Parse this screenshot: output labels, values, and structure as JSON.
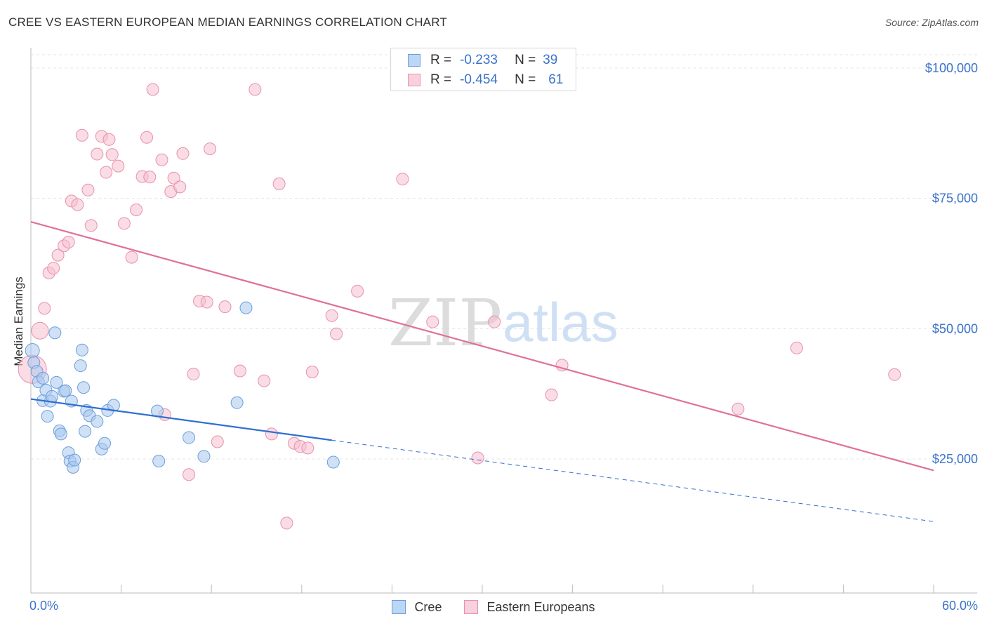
{
  "title": "CREE VS EASTERN EUROPEAN MEDIAN EARNINGS CORRELATION CHART",
  "source": "Source: ZipAtlas.com",
  "watermark": {
    "zip": "ZIP",
    "atlas": "atlas"
  },
  "legend": {
    "r_label": "R =",
    "n_label": "N =",
    "cree": {
      "r": "-0.233",
      "n": "39"
    },
    "eastern": {
      "r": "-0.454",
      "n": "61"
    }
  },
  "colors": {
    "cree_fill": "#a9c8ef",
    "cree_stroke": "#6b9fdc",
    "cree_line": "#2f6fd0",
    "eastern_fill": "#f6bfd0",
    "eastern_stroke": "#e890ad",
    "eastern_line": "#e0709a",
    "axis_text": "#3a73c9"
  },
  "chart_data": {
    "type": "scatter",
    "title": "CREE VS EASTERN EUROPEAN MEDIAN EARNINGS CORRELATION CHART",
    "xlabel": "",
    "ylabel": "Median Earnings",
    "xlim": [
      0,
      60
    ],
    "ylim": [
      0,
      105000
    ],
    "x_tick_labels": [
      "0.0%",
      "60.0%"
    ],
    "y_ticks": [
      25000,
      50000,
      75000,
      100000
    ],
    "y_tick_labels": [
      "$25,000",
      "$50,000",
      "$75,000",
      "$100,000"
    ],
    "grid": true,
    "legend_position": "top-center",
    "series": [
      {
        "name": "Cree",
        "r": -0.233,
        "n": 39,
        "trend": {
          "x0": 0,
          "y0": 36500,
          "x1": 20,
          "y1": 28600,
          "x_dash_end": 60,
          "y_dash_end": 13000
        },
        "points": [
          [
            0.1,
            45800
          ],
          [
            0.2,
            43500
          ],
          [
            0.4,
            41800
          ],
          [
            0.5,
            39800
          ],
          [
            0.8,
            40500
          ],
          [
            0.8,
            36200
          ],
          [
            1.0,
            38200
          ],
          [
            1.1,
            33200
          ],
          [
            1.3,
            36100
          ],
          [
            1.4,
            37000
          ],
          [
            1.6,
            49200
          ],
          [
            1.7,
            39700
          ],
          [
            1.9,
            30400
          ],
          [
            2.0,
            29800
          ],
          [
            2.2,
            38000
          ],
          [
            2.3,
            38100
          ],
          [
            2.5,
            26200
          ],
          [
            2.6,
            24600
          ],
          [
            2.7,
            36100
          ],
          [
            2.8,
            23400
          ],
          [
            2.9,
            24800
          ],
          [
            3.3,
            42900
          ],
          [
            3.4,
            45900
          ],
          [
            3.5,
            38700
          ],
          [
            3.6,
            30300
          ],
          [
            3.7,
            34300
          ],
          [
            3.9,
            33300
          ],
          [
            4.4,
            32200
          ],
          [
            4.7,
            26900
          ],
          [
            4.9,
            28000
          ],
          [
            5.1,
            34300
          ],
          [
            5.5,
            35300
          ],
          [
            8.4,
            34200
          ],
          [
            8.5,
            24600
          ],
          [
            10.5,
            29100
          ],
          [
            11.5,
            25500
          ],
          [
            13.7,
            35800
          ],
          [
            14.3,
            54000
          ],
          [
            20.1,
            24400
          ]
        ]
      },
      {
        "name": "Eastern Europeans",
        "r": -0.454,
        "n": 61,
        "trend": {
          "x0": 0,
          "y0": 70500,
          "x1": 60,
          "y1": 22800
        },
        "points": [
          [
            0.1,
            42200
          ],
          [
            0.6,
            49600
          ],
          [
            0.9,
            53900
          ],
          [
            1.2,
            60700
          ],
          [
            1.5,
            61600
          ],
          [
            1.8,
            64100
          ],
          [
            2.2,
            65900
          ],
          [
            2.5,
            66600
          ],
          [
            2.7,
            74500
          ],
          [
            3.1,
            73800
          ],
          [
            3.4,
            87100
          ],
          [
            3.8,
            76600
          ],
          [
            4.0,
            69800
          ],
          [
            4.4,
            83500
          ],
          [
            4.7,
            86900
          ],
          [
            5.0,
            80000
          ],
          [
            5.2,
            86300
          ],
          [
            5.4,
            83400
          ],
          [
            5.8,
            81200
          ],
          [
            6.2,
            70200
          ],
          [
            6.7,
            63700
          ],
          [
            7.0,
            72800
          ],
          [
            7.4,
            79200
          ],
          [
            7.7,
            86700
          ],
          [
            7.9,
            79100
          ],
          [
            8.1,
            95900
          ],
          [
            8.7,
            82400
          ],
          [
            8.9,
            33500
          ],
          [
            9.3,
            76300
          ],
          [
            9.5,
            78900
          ],
          [
            9.9,
            77200
          ],
          [
            10.1,
            83600
          ],
          [
            10.5,
            22000
          ],
          [
            10.8,
            41300
          ],
          [
            11.2,
            55300
          ],
          [
            11.7,
            55100
          ],
          [
            11.9,
            84500
          ],
          [
            12.4,
            28300
          ],
          [
            12.9,
            54200
          ],
          [
            13.9,
            41900
          ],
          [
            14.9,
            95900
          ],
          [
            15.5,
            40000
          ],
          [
            16.0,
            29800
          ],
          [
            16.5,
            77800
          ],
          [
            17.0,
            12700
          ],
          [
            17.5,
            28000
          ],
          [
            17.9,
            27400
          ],
          [
            18.4,
            27100
          ],
          [
            18.7,
            41700
          ],
          [
            20.0,
            52500
          ],
          [
            20.3,
            49000
          ],
          [
            21.7,
            57200
          ],
          [
            24.7,
            78700
          ],
          [
            26.7,
            51300
          ],
          [
            29.7,
            25200
          ],
          [
            30.8,
            51300
          ],
          [
            34.6,
            37300
          ],
          [
            35.3,
            43000
          ],
          [
            47.0,
            34600
          ],
          [
            50.9,
            46300
          ],
          [
            57.4,
            41200
          ]
        ]
      }
    ]
  }
}
